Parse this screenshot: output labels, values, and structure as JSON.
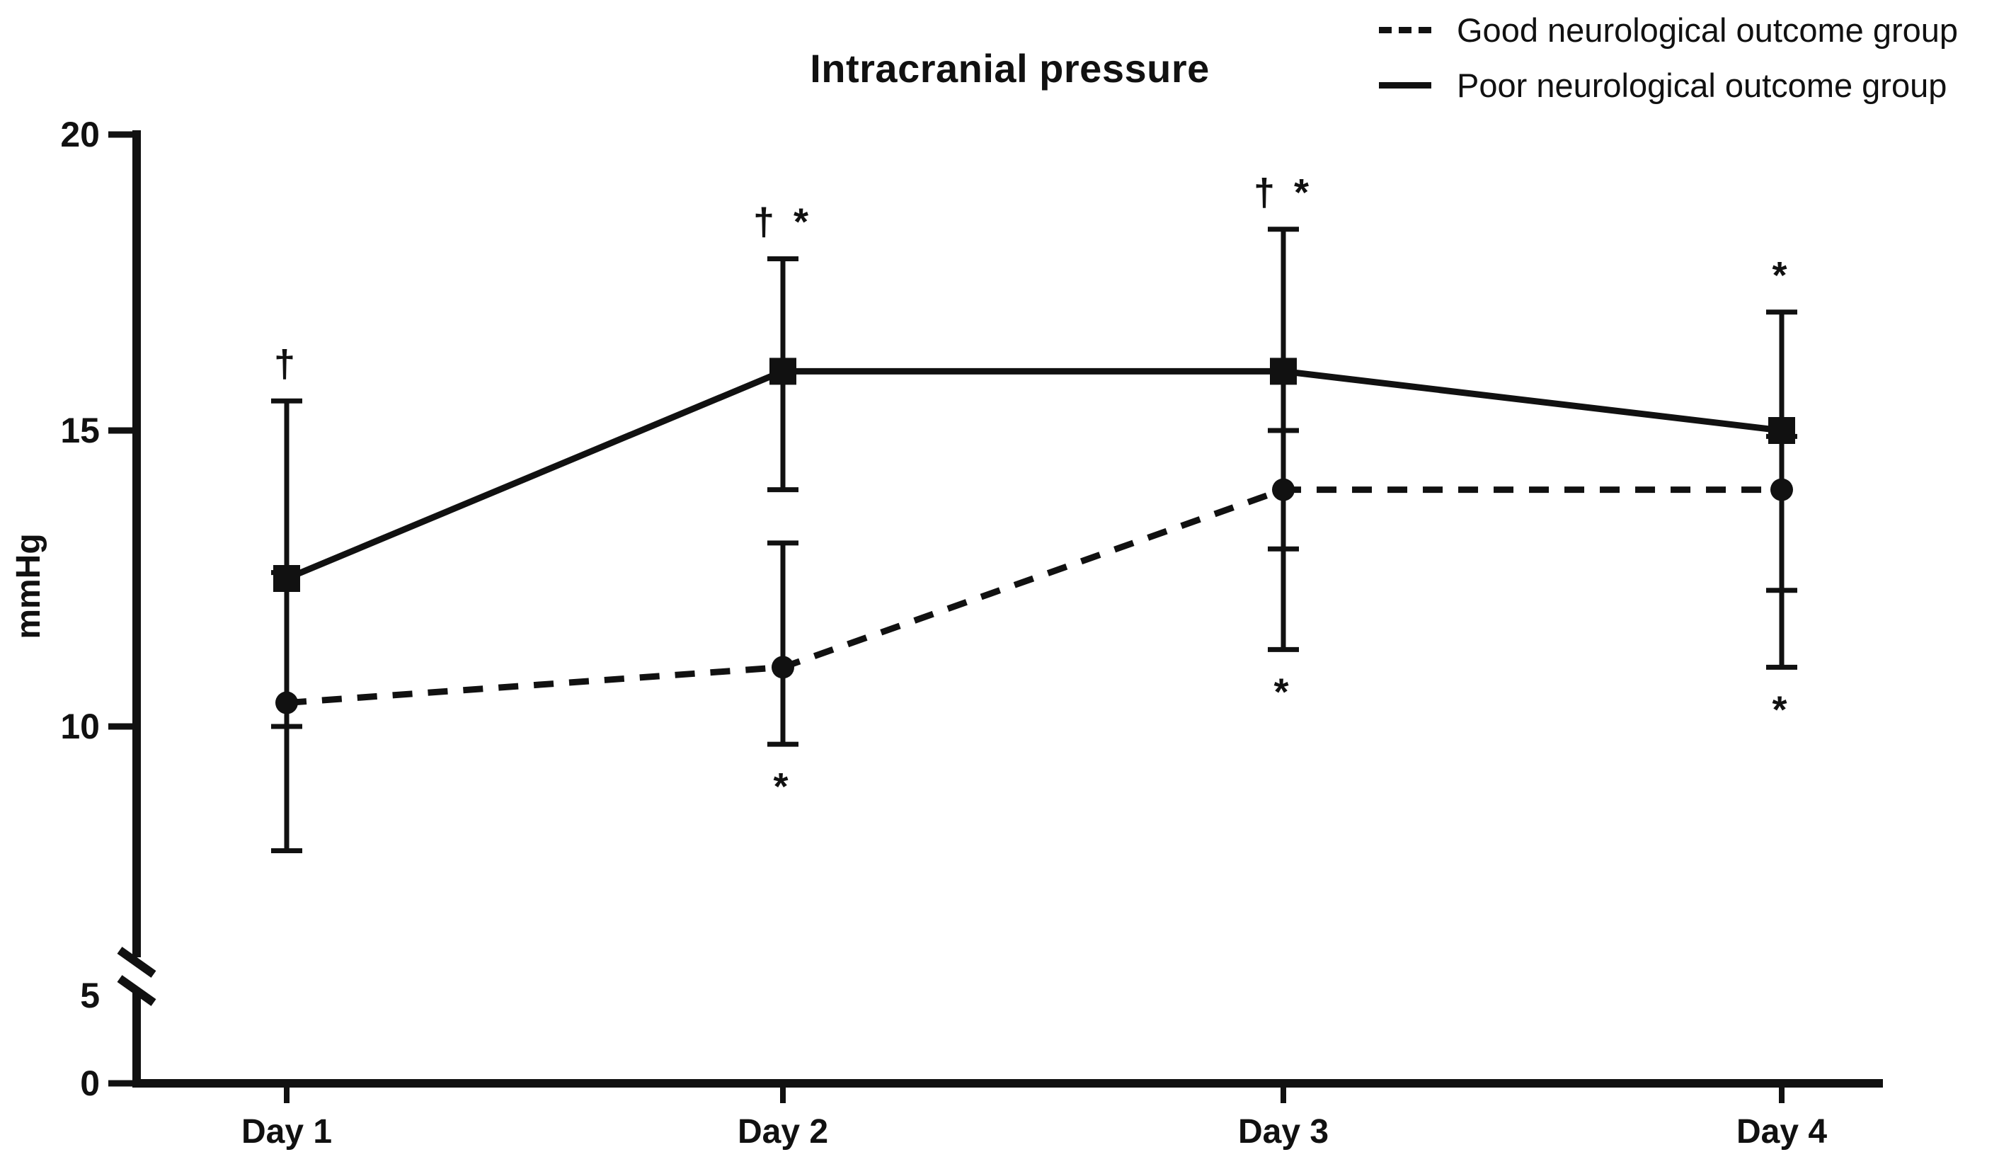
{
  "title": "Intracranial pressure",
  "colors": {
    "ink": "#111111",
    "background": "#ffffff"
  },
  "legend": {
    "items": [
      {
        "label": "Good neurological outcome group",
        "style": "dashed"
      },
      {
        "label": "Poor neurological outcome group",
        "style": "solid"
      }
    ]
  },
  "chart_data": {
    "type": "line",
    "title": "Intracranial pressure",
    "ylabel": "mmHg",
    "categories": [
      "Day 1",
      "Day 2",
      "Day 3",
      "Day 4"
    ],
    "y_ticks": [
      20,
      15,
      10,
      5,
      0
    ],
    "ylim_display": [
      0,
      20
    ],
    "axis_break": {
      "between": [
        5,
        10
      ]
    },
    "grid": false,
    "legend_position": "top-right",
    "series": [
      {
        "name": "Good neurological outcome group",
        "line_style": "dashed",
        "marker": "circle",
        "values": [
          10.4,
          11.0,
          14.0,
          14.0
        ],
        "err_upper": [
          12.6,
          13.1,
          15.0,
          14.9
        ],
        "err_lower": [
          7.9,
          9.7,
          11.3,
          11.0
        ]
      },
      {
        "name": "Poor neurological outcome group",
        "line_style": "solid",
        "marker": "square",
        "values": [
          12.5,
          16.0,
          16.0,
          15.0
        ],
        "err_upper": [
          15.5,
          17.9,
          18.4,
          17.0
        ],
        "err_lower": [
          10.0,
          14.0,
          13.0,
          12.3
        ]
      }
    ],
    "annotations": [
      {
        "category": "Day 1",
        "position": "above",
        "text": "†"
      },
      {
        "category": "Day 2",
        "position": "above",
        "text": "† *"
      },
      {
        "category": "Day 2",
        "position": "below",
        "text": "*"
      },
      {
        "category": "Day 3",
        "position": "above",
        "text": "† *"
      },
      {
        "category": "Day 3",
        "position": "below",
        "text": "*"
      },
      {
        "category": "Day 4",
        "position": "above",
        "text": "*"
      },
      {
        "category": "Day 4",
        "position": "below",
        "text": "*"
      }
    ]
  }
}
